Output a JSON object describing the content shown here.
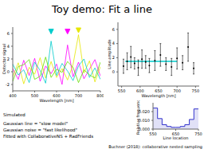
{
  "slide": {
    "title": "Toy demo: Fit a line",
    "notes": [
      "Simulated",
      "Gaussian line = \"slow model\"",
      "Gaussian noise = \"fast likelihood\"",
      "Fitted with CollaborativeNS + RadFriends"
    ],
    "citation": "Buchner (2018): collaborative nested sampling"
  },
  "chart_data": [
    {
      "type": "line",
      "x_label": "Wavelength [nm]",
      "y_label": "Detector signal",
      "x": [
        400,
        425,
        450,
        475,
        500,
        525,
        550,
        575,
        600,
        625,
        650,
        675,
        700,
        725,
        750,
        775,
        800
      ],
      "series": [
        {
          "color": "#ff00ff",
          "values": [
            0.5,
            -1.2,
            1.8,
            -0.6,
            2.1,
            -1.5,
            0.9,
            -0.3,
            1.2,
            -2.0,
            4.2,
            -0.8,
            1.5,
            -1.1,
            0.4,
            1.9,
            -0.7
          ]
        },
        {
          "color": "#e6e600",
          "values": [
            -0.8,
            1.4,
            -1.9,
            0.7,
            -0.4,
            2.2,
            -1.0,
            1.6,
            -0.9,
            0.5,
            -1.3,
            1.1,
            5.8,
            -0.2,
            1.7,
            -1.6,
            0.8
          ]
        },
        {
          "color": "#00cccc",
          "values": [
            1.2,
            -0.5,
            0.3,
            -1.7,
            1.5,
            0.2,
            -1.8,
            4.8,
            -0.6,
            1.3,
            0.1,
            -1.4,
            0.9,
            2.0,
            -0.9,
            0.6,
            -1.2
          ]
        },
        {
          "color": "#66dd00",
          "values": [
            -1.5,
            0.8,
            1.1,
            1.9,
            -1.2,
            -0.7,
            2.3,
            -0.9,
            0.4,
            -0.1,
            1.6,
            0.7,
            -1.7,
            0.3,
            -0.5,
            -1.0,
            1.5
          ]
        }
      ],
      "markers": {
        "x": [
          575,
          650,
          700
        ],
        "y": [
          6.3,
          6.3,
          6.5
        ],
        "colors": [
          "#00cccc",
          "#ff00ff",
          "#e6e600"
        ],
        "marker": "triangle"
      },
      "xlim": [
        400,
        800
      ],
      "xticks": [
        400,
        500,
        600,
        700,
        800
      ],
      "ylim": [
        -3,
        7
      ],
      "yticks": [
        -2,
        0,
        2,
        4,
        6
      ]
    },
    {
      "type": "scatter",
      "x_label": "Wavelength [nm]",
      "y_label": "Line amplitude",
      "x": [
        555,
        565,
        575,
        585,
        595,
        605,
        615,
        625,
        640,
        655,
        670,
        685,
        700,
        715,
        730,
        745
      ],
      "values": [
        0.8,
        1.5,
        2.1,
        1.2,
        0.6,
        1.8,
        1.4,
        0.9,
        1.6,
        2.4,
        1.1,
        0.7,
        1.9,
        1.3,
        3.5,
        0.5
      ],
      "errors": [
        1.0,
        1.2,
        1.5,
        0.8,
        1.1,
        1.3,
        0.9,
        1.0,
        1.4,
        1.6,
        0.9,
        1.2,
        1.5,
        1.0,
        2.0,
        0.8
      ],
      "color": "#000000",
      "fit_line": {
        "x": [
          560,
          700
        ],
        "y": 1.5,
        "color": "#00cccc"
      },
      "xlim": [
        540,
        760
      ],
      "xticks": [
        550,
        600,
        650,
        700,
        750
      ],
      "ylim": [
        -2,
        7
      ],
      "yticks": [
        0,
        2,
        4,
        6
      ]
    },
    {
      "type": "histogram",
      "x_label": "Line location",
      "y_label": "Relative frequency",
      "bins": [
        550,
        570,
        590,
        610,
        630,
        650,
        670,
        690,
        710,
        730,
        750
      ],
      "counts": [
        0.024,
        0.012,
        0.005,
        0.003,
        0.002,
        0.002,
        0.003,
        0.005,
        0.011,
        0.023
      ],
      "color": "#3333cc",
      "xlim": [
        550,
        750
      ],
      "xticks": [
        550,
        650,
        750
      ],
      "ylim": [
        0,
        0.03
      ],
      "yticks": [
        {
          "value": 0,
          "label": "0.000"
        },
        {
          "value": 0.01,
          "label": "0.010"
        },
        {
          "value": 0.02,
          "label": "0.020"
        }
      ]
    }
  ]
}
